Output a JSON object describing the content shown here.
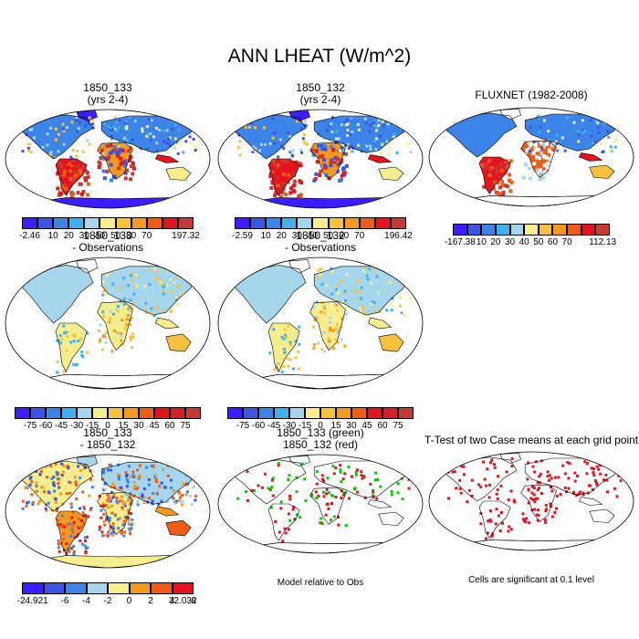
{
  "title": "ANN LHEAT (W/m^2)",
  "colors": {
    "scale11": [
      "#3c1dff",
      "#3a55e6",
      "#3d84e8",
      "#3fb2ee",
      "#a6d6ec",
      "#f6ee8e",
      "#f6c23e",
      "#f39a1f",
      "#ef5c18",
      "#e4141e",
      "#c63a34"
    ],
    "scale12": [
      "#3c1dff",
      "#3a55e6",
      "#3d84e8",
      "#3fb2ee",
      "#a6d6ec",
      "#f6ee8e",
      "#f6c23e",
      "#f39a1f",
      "#ef5c18",
      "#e4141e",
      "#d21e2a",
      "#c63a34"
    ],
    "scale8": [
      "#3c1dff",
      "#3a55e6",
      "#3d84e8",
      "#a6d6ec",
      "#f6ee8e",
      "#f39a1f",
      "#ef5c18",
      "#e4141e"
    ],
    "significance_green": "#00cc00",
    "significance_red": "#e4141e"
  },
  "panels": [
    {
      "id": "p1",
      "title1": "1850_133",
      "title2": "(yrs 2-4)",
      "palette": "scale11",
      "ticks": [
        "-2.46",
        "10",
        "20",
        "30",
        "40",
        "50",
        "60",
        "70",
        "197.32"
      ]
    },
    {
      "id": "p2",
      "title1": "1850_132",
      "title2": "(yrs 2-4)",
      "palette": "scale11",
      "ticks": [
        "-2.59",
        "10",
        "20",
        "30",
        "40",
        "50",
        "60",
        "70",
        "196.42"
      ]
    },
    {
      "id": "p3",
      "title1": "FLUXNET (1982-2008)",
      "title2": "",
      "palette": "scale11",
      "ticks": [
        "-167.38",
        "10",
        "20",
        "30",
        "40",
        "50",
        "60",
        "70",
        "112.13"
      ]
    },
    {
      "id": "p4",
      "title1": "1850_133",
      "title2": "- Observations",
      "palette": "scale12",
      "ticks": [
        "-75",
        "-60",
        "-45",
        "-30",
        "-15",
        "0",
        "15",
        "30",
        "45",
        "60",
        "75"
      ]
    },
    {
      "id": "p5",
      "title1": "1850_132",
      "title2": "- Observations",
      "palette": "scale12",
      "ticks": [
        "-75",
        "-60",
        "-45",
        "-30",
        "-15",
        "0",
        "15",
        "30",
        "45",
        "60",
        "75"
      ]
    },
    {
      "id": "p6",
      "title1": "1850_133",
      "title2": "- 1850_132",
      "palette": "scale8",
      "ticks": [
        "-24.921",
        "-6",
        "-4",
        "-2",
        "0",
        "2",
        "4",
        "6",
        "32.032"
      ]
    },
    {
      "id": "p7",
      "title1": "1850_133 (green)",
      "title2": "1850_132 (red)",
      "palette": "",
      "ticks": []
    },
    {
      "id": "p8",
      "title1": "T-Test of two Case means at each grid point",
      "title2": "",
      "palette": "",
      "ticks": []
    }
  ],
  "notes": {
    "model_relative": "Model relative to Obs",
    "significance": "Cells are significant at 0.1 level"
  },
  "chart_data": {
    "type": "heatmap",
    "title": "ANN LHEAT (W/m^2)",
    "maps": [
      {
        "title": "1850_133 (yrs 2-4)",
        "colorbar_levels": [
          -2.46,
          10,
          20,
          30,
          40,
          50,
          60,
          70,
          197.32
        ]
      },
      {
        "title": "1850_132 (yrs 2-4)",
        "colorbar_levels": [
          -2.59,
          10,
          20,
          30,
          40,
          50,
          60,
          70,
          196.42
        ]
      },
      {
        "title": "FLUXNET (1982-2008)",
        "colorbar_levels": [
          -167.38,
          10,
          20,
          30,
          40,
          50,
          60,
          70,
          112.13
        ]
      },
      {
        "title": "1850_133 - Observations",
        "colorbar_levels": [
          -75,
          -60,
          -45,
          -30,
          -15,
          0,
          15,
          30,
          45,
          60,
          75
        ]
      },
      {
        "title": "1850_132 - Observations",
        "colorbar_levels": [
          -75,
          -60,
          -45,
          -30,
          -15,
          0,
          15,
          30,
          45,
          60,
          75
        ]
      },
      {
        "title": "1850_133 - 1850_132",
        "colorbar_levels": [
          -24.921,
          -6,
          -4,
          -2,
          0,
          2,
          4,
          6,
          32.032
        ]
      },
      {
        "title": "1850_133 (green) 1850_132 (red)",
        "colorbar_levels": []
      },
      {
        "title": "T-Test of two Case means at each grid point",
        "colorbar_levels": []
      }
    ]
  }
}
